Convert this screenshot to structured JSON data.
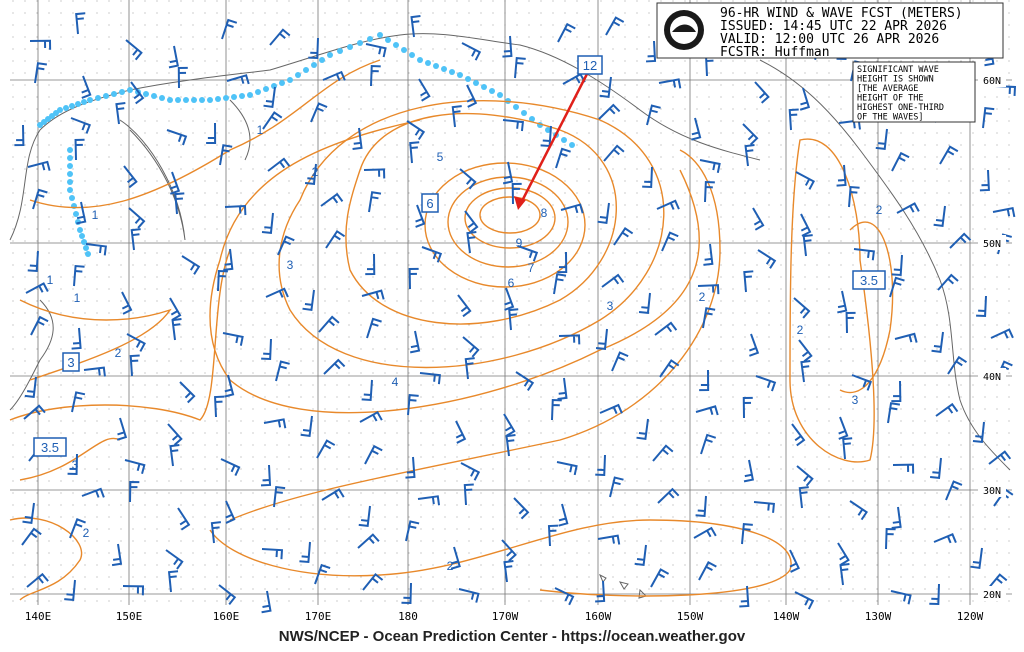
{
  "header": {
    "lines": [
      "96-HR WIND & WAVE FCST (METERS)",
      "ISSUED: 14:45 UTC 22 APR 2026",
      "VALID:  12:00 UTC 26 APR 2026",
      "FCSTR:  Huffman"
    ]
  },
  "note": [
    "SIGNIFICANT WAVE",
    "HEIGHT IS SHOWN",
    "[THE AVERAGE",
    "HEIGHT OF THE",
    "HIGHEST ONE-THIRD",
    "OF THE WAVES]"
  ],
  "longitude_labels": [
    "140E",
    "150E",
    "160E",
    "170E",
    "180",
    "170W",
    "160W",
    "150W",
    "140W",
    "130W",
    "120W"
  ],
  "latitude_labels": [
    "60N",
    "50N",
    "40N",
    "30N",
    "20N"
  ],
  "boxed_labels": [
    "12",
    "6",
    "3.5",
    "3",
    "3.5"
  ],
  "contour_labels": [
    "1",
    "1",
    "1",
    "1",
    "2",
    "3",
    "4",
    "5",
    "6",
    "7",
    "8",
    "9",
    "2",
    "3",
    "2",
    "2",
    "3",
    "2",
    "2",
    "3",
    "2"
  ],
  "footer": "NWS/NCEP - Ocean Prediction Center - https://ocean.weather.gov"
}
